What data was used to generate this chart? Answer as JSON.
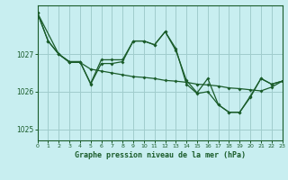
{
  "background_color": "#c8eef0",
  "grid_color": "#a0cccc",
  "line_color": "#1a5c2a",
  "title": "Graphe pression niveau de la mer (hPa)",
  "xlim": [
    0,
    23
  ],
  "ylim": [
    1024.7,
    1028.3
  ],
  "yticks": [
    1025,
    1026,
    1027
  ],
  "xticks": [
    0,
    1,
    2,
    3,
    4,
    5,
    6,
    7,
    8,
    9,
    10,
    11,
    12,
    13,
    14,
    15,
    16,
    17,
    18,
    19,
    20,
    21,
    22,
    23
  ],
  "series": [
    {
      "x": [
        0,
        1,
        2,
        3,
        4,
        5,
        6,
        7,
        8,
        9,
        10,
        11,
        12,
        13,
        14,
        15,
        16,
        17,
        18,
        19,
        20,
        21,
        22,
        23
      ],
      "y": [
        1028.1,
        1027.35,
        1027.0,
        1026.78,
        1026.78,
        1026.6,
        1026.55,
        1026.5,
        1026.45,
        1026.4,
        1026.38,
        1026.35,
        1026.3,
        1026.28,
        1026.25,
        1026.2,
        1026.18,
        1026.15,
        1026.1,
        1026.08,
        1026.05,
        1026.02,
        1026.12,
        1026.28
      ]
    },
    {
      "x": [
        0,
        1,
        2,
        3,
        4,
        5,
        6,
        7,
        8,
        9,
        10,
        11,
        12,
        13,
        14,
        15,
        16,
        17,
        18,
        19,
        20,
        21,
        22,
        23
      ],
      "y": [
        1028.1,
        1027.35,
        1027.0,
        1026.8,
        1026.8,
        1026.2,
        1026.75,
        1026.75,
        1026.8,
        1027.35,
        1027.35,
        1027.25,
        1027.6,
        1027.15,
        1026.2,
        1025.95,
        1026.0,
        1025.65,
        1025.45,
        1025.45,
        1025.85,
        1026.35,
        1026.2,
        1026.28
      ]
    },
    {
      "x": [
        0,
        2,
        3,
        4,
        5,
        6,
        7,
        8,
        9,
        10,
        11,
        12,
        13,
        14,
        15,
        16,
        17,
        18,
        19,
        20,
        21,
        22,
        23
      ],
      "y": [
        1028.1,
        1027.0,
        1026.8,
        1026.8,
        1026.22,
        1026.85,
        1026.85,
        1026.85,
        1027.35,
        1027.35,
        1027.25,
        1027.6,
        1027.1,
        1026.3,
        1025.97,
        1026.35,
        1025.65,
        1025.45,
        1025.45,
        1025.88,
        1026.35,
        1026.2,
        1026.28
      ]
    }
  ]
}
